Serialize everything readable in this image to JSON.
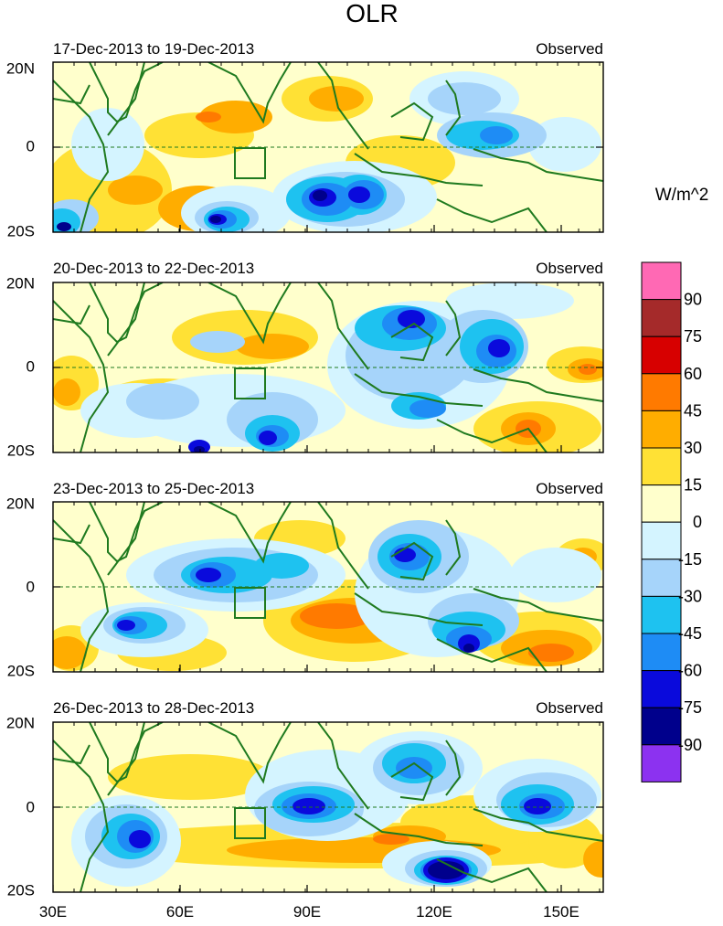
{
  "title": "OLR",
  "units": "W/m^2",
  "panels": [
    {
      "period": "17-Dec-2013 to 19-Dec-2013",
      "label": "Observed"
    },
    {
      "period": "20-Dec-2013 to 22-Dec-2013",
      "label": "Observed"
    },
    {
      "period": "23-Dec-2013 to 25-Dec-2013",
      "label": "Observed"
    },
    {
      "period": "26-Dec-2013 to 28-Dec-2013",
      "label": "Observed"
    }
  ],
  "lat_labels": [
    "20N",
    "0",
    "20S"
  ],
  "lon_labels": [
    "30E",
    "60E",
    "90E",
    "120E",
    "150E"
  ],
  "colorbar": {
    "labels": [
      "90",
      "75",
      "60",
      "45",
      "30",
      "15",
      "0",
      "-15",
      "-30",
      "-45",
      "-60",
      "-75",
      "-90"
    ],
    "colors": [
      "#ff69b4",
      "#a52a2a",
      "#d70000",
      "#ff7a00",
      "#ffad00",
      "#ffe135",
      "#ffffcc",
      "#d4f4ff",
      "#a6d4fa",
      "#1ec2f0",
      "#1e8cf5",
      "#0a0adc",
      "#00008c",
      "#8c32f0"
    ]
  },
  "colors": {
    "coast": "#1f7a1f",
    "equator": "#1f7a1f",
    "ocean_base": "#ffffcc"
  }
}
